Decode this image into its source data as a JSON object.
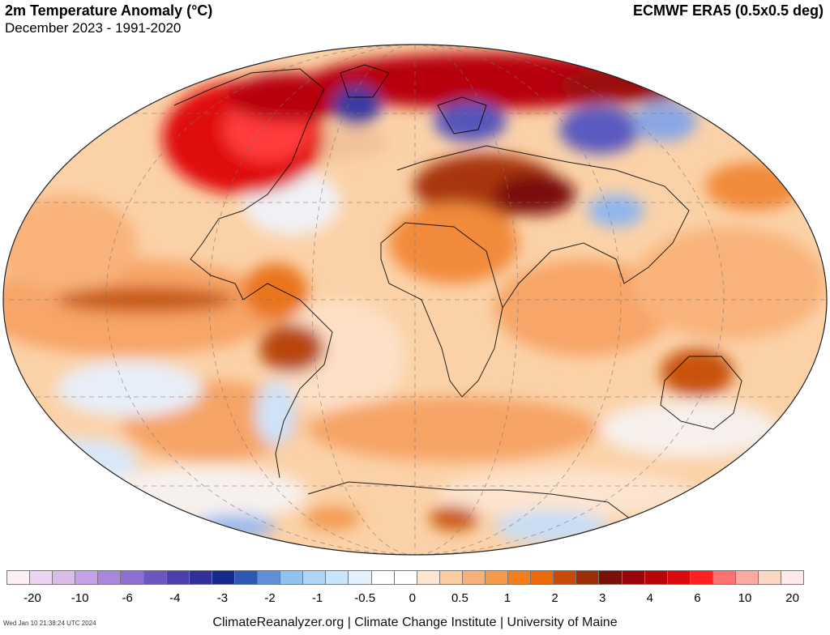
{
  "header": {
    "title": "2m Temperature Anomaly (°C)",
    "subtitle": "December 2023 - 1991-2020",
    "source": "ECMWF ERA5 (0.5x0.5 deg)"
  },
  "colorbar": {
    "colors": [
      "#fdeef4",
      "#ead4ef",
      "#d8bdeb",
      "#c3a3e6",
      "#a987de",
      "#8d6ed2",
      "#6c57c1",
      "#4e3fae",
      "#34309b",
      "#142a8e",
      "#2f57b4",
      "#5e8fd8",
      "#8ec3f0",
      "#aed4f6",
      "#c8e3fa",
      "#e4f0fd",
      "#ffffff",
      "#ffffff",
      "#fde5cf",
      "#fccb9f",
      "#f9b078",
      "#f7984b",
      "#f47d1e",
      "#e96a06",
      "#c94b06",
      "#9c2e06",
      "#7a0f07",
      "#990508",
      "#b80508",
      "#dc0a0a",
      "#ff2020",
      "#ff7070",
      "#ffaaa0",
      "#fcd8c4",
      "#fde9ea"
    ],
    "tick_labels": [
      "-20",
      "-10",
      "-6",
      "-4",
      "-3",
      "-2",
      "-1",
      "-0.5",
      "0",
      "0.5",
      "1",
      "2",
      "3",
      "4",
      "6",
      "10",
      "20"
    ]
  },
  "footer": {
    "timestamp": "Wed Jan 10 21:38:24 UTC 2024",
    "credit": "ClimateReanalyzer.org | Climate Change Institute | University of Maine"
  }
}
